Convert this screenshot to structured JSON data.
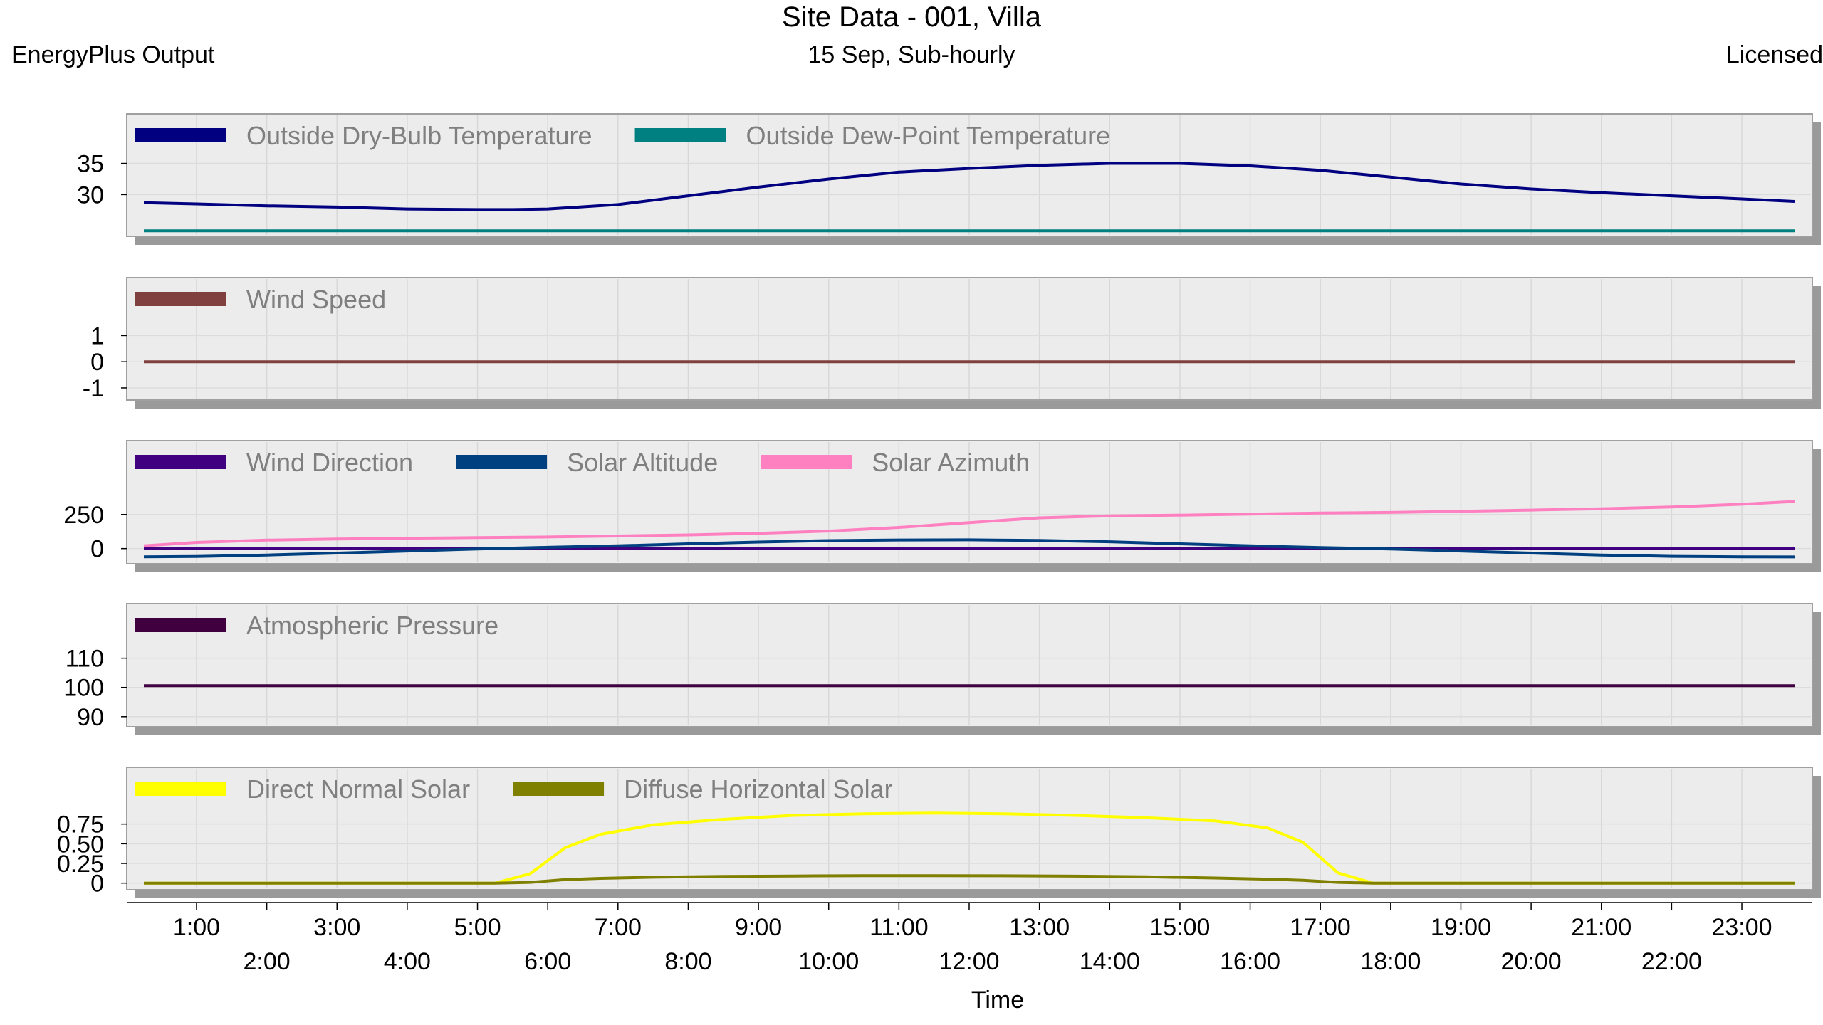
{
  "header": {
    "title": "Site Data - 001, Villa",
    "subtitle": "15 Sep, Sub-hourly",
    "left_label": "EnergyPlus Output",
    "right_label": "Licensed"
  },
  "chart_data": [
    {
      "type": "line",
      "legend_position": "top-left",
      "ylim": [
        24,
        37
      ],
      "y_ticks": [
        30,
        35
      ],
      "y_tick_labels": [
        "30",
        "35"
      ],
      "series": [
        {
          "name": "Outside Dry-Bulb Temperature",
          "color": "#000080",
          "x": [
            0.25,
            1,
            2,
            3,
            4,
            5,
            5.5,
            6,
            7,
            8,
            9,
            10,
            11,
            12,
            13,
            14,
            15,
            16,
            17,
            18,
            19,
            20,
            21,
            22,
            23,
            23.75
          ],
          "values": [
            28.7,
            28.5,
            28.2,
            28.0,
            27.7,
            27.6,
            27.6,
            27.7,
            28.4,
            29.8,
            31.2,
            32.5,
            33.6,
            34.2,
            34.7,
            35.0,
            35.0,
            34.6,
            33.9,
            32.8,
            31.7,
            30.9,
            30.3,
            29.8,
            29.3,
            28.9
          ]
        },
        {
          "name": "Outside Dew-Point Temperature",
          "color": "#008080",
          "x": [
            0.25,
            23.75
          ],
          "values": [
            24.2,
            24.2
          ]
        }
      ]
    },
    {
      "type": "line",
      "legend_position": "top-left",
      "ylim": [
        -1.3,
        1.8
      ],
      "y_ticks": [
        -1,
        0,
        1
      ],
      "y_tick_labels": [
        "-1",
        "0",
        "1"
      ],
      "series": [
        {
          "name": "Wind Speed",
          "color": "#804040",
          "x": [
            0.25,
            23.75
          ],
          "values": [
            0,
            0
          ]
        }
      ]
    },
    {
      "type": "line",
      "legend_position": "top-left",
      "ylim": [
        -80,
        520
      ],
      "y_ticks": [
        0,
        250
      ],
      "y_tick_labels": [
        "0",
        "250"
      ],
      "series": [
        {
          "name": "Wind Direction",
          "color": "#400080",
          "x": [
            0.25,
            23.75
          ],
          "values": [
            0,
            0
          ]
        },
        {
          "name": "Solar Altitude",
          "color": "#004080",
          "x": [
            0.25,
            1,
            2,
            3,
            4,
            5,
            6,
            7,
            8,
            9,
            10,
            11,
            12,
            13,
            14,
            15,
            16,
            17,
            18,
            19,
            20,
            21,
            22,
            23,
            23.75
          ],
          "values": [
            -60,
            -58,
            -47,
            -33,
            -18,
            -3,
            9,
            20,
            35,
            48,
            58,
            63,
            64,
            60,
            50,
            35,
            20,
            7,
            -3,
            -18,
            -33,
            -47,
            -57,
            -60,
            -61
          ]
        },
        {
          "name": "Solar Azimuth",
          "color": "#ff80c0",
          "x": [
            0.25,
            1,
            2,
            3,
            4,
            5,
            6,
            7,
            8,
            9,
            10,
            11,
            12,
            13,
            14,
            15,
            16,
            17,
            18,
            19,
            20,
            21,
            22,
            23,
            23.75
          ],
          "values": [
            20,
            45,
            62,
            70,
            76,
            80,
            85,
            92,
            100,
            112,
            128,
            155,
            190,
            225,
            240,
            245,
            253,
            260,
            265,
            273,
            282,
            292,
            305,
            325,
            345
          ]
        }
      ]
    },
    {
      "type": "line",
      "legend_position": "top-left",
      "ylim": [
        88,
        116
      ],
      "y_ticks": [
        90,
        100,
        110
      ],
      "y_tick_labels": [
        "90",
        "100",
        "110"
      ],
      "series": [
        {
          "name": "Atmospheric Pressure",
          "color": "#400040",
          "x": [
            0.25,
            23.75
          ],
          "values": [
            100.6,
            100.6
          ]
        }
      ]
    },
    {
      "type": "line",
      "legend_position": "top-left",
      "ylim": [
        -0.03,
        1.0
      ],
      "y_ticks": [
        0,
        0.25,
        0.5,
        0.75
      ],
      "y_tick_labels": [
        "0",
        "0.25",
        "0.50",
        "0.75"
      ],
      "xlabel": "Time",
      "x_ticks": [
        1,
        2,
        3,
        4,
        5,
        6,
        7,
        8,
        9,
        10,
        11,
        12,
        13,
        14,
        15,
        16,
        17,
        18,
        19,
        20,
        21,
        22,
        23
      ],
      "x_tick_labels": [
        "1:00",
        "2:00",
        "3:00",
        "4:00",
        "5:00",
        "6:00",
        "7:00",
        "8:00",
        "9:00",
        "10:00",
        "11:00",
        "12:00",
        "13:00",
        "14:00",
        "15:00",
        "16:00",
        "17:00",
        "18:00",
        "19:00",
        "20:00",
        "21:00",
        "22:00",
        "23:00"
      ],
      "series": [
        {
          "name": "Direct Normal Solar",
          "color": "#ffff00",
          "x": [
            0.25,
            5.25,
            5.75,
            6.25,
            6.75,
            7.5,
            8.5,
            9.5,
            10.5,
            11.5,
            12.5,
            13.5,
            14.5,
            15.5,
            16.25,
            16.75,
            17.25,
            17.75,
            23.75
          ],
          "values": [
            0,
            0,
            0.12,
            0.45,
            0.62,
            0.74,
            0.81,
            0.86,
            0.88,
            0.89,
            0.88,
            0.86,
            0.83,
            0.79,
            0.7,
            0.52,
            0.13,
            0,
            0
          ]
        },
        {
          "name": "Diffuse Horizontal Solar",
          "color": "#808000",
          "x": [
            0.25,
            5.25,
            5.75,
            6.25,
            6.75,
            7.5,
            8.5,
            9.5,
            10.5,
            11.5,
            12.5,
            13.5,
            14.5,
            15.5,
            16.25,
            16.75,
            17.25,
            17.75,
            23.75
          ],
          "values": [
            0,
            0,
            0.01,
            0.045,
            0.06,
            0.075,
            0.085,
            0.09,
            0.095,
            0.095,
            0.093,
            0.088,
            0.08,
            0.065,
            0.05,
            0.035,
            0.01,
            0,
            0
          ]
        }
      ]
    }
  ]
}
